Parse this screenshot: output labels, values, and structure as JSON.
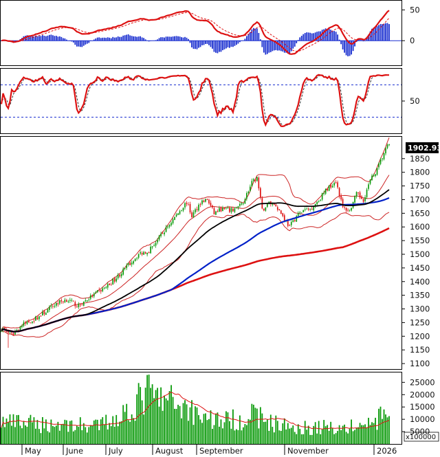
{
  "chart_data": {
    "type": "candlestick",
    "last_price": "1902.930",
    "months": [
      "May",
      "June",
      "July",
      "August",
      "September",
      "November",
      "2026"
    ],
    "price_axis": {
      "range": [
        1080,
        1930
      ],
      "ticks": [
        1100,
        1150,
        1200,
        1250,
        1300,
        1350,
        1400,
        1450,
        1500,
        1550,
        1600,
        1650,
        1700,
        1750,
        1800,
        1850
      ]
    },
    "volume_axis": {
      "range": [
        0,
        29000
      ],
      "ticks": [
        5000,
        10000,
        15000,
        20000,
        25000
      ],
      "unit": "x100000"
    },
    "macd_axis": {
      "range": [
        -40,
        65
      ],
      "ticks": [
        0,
        50
      ]
    },
    "stoch_axis": {
      "range": [
        -10,
        110
      ],
      "ticks": [
        50
      ],
      "levels": [
        20,
        80
      ]
    },
    "colors": {
      "up": "#0a9a0a",
      "down": "#dd1111",
      "ma_long": "#dd1111",
      "ma_mid": "#0020c8",
      "ma_short": "#000000",
      "bands": "#cc2222",
      "macd_pos": "#1a2fd0",
      "price_tag": "#000000"
    },
    "close_anchors": [
      [
        0,
        1230
      ],
      [
        6,
        1205
      ],
      [
        12,
        1240
      ],
      [
        20,
        1265
      ],
      [
        26,
        1290
      ],
      [
        32,
        1320
      ],
      [
        38,
        1335
      ],
      [
        45,
        1310
      ],
      [
        50,
        1335
      ],
      [
        56,
        1360
      ],
      [
        62,
        1385
      ],
      [
        68,
        1420
      ],
      [
        74,
        1460
      ],
      [
        80,
        1500
      ],
      [
        86,
        1515
      ],
      [
        92,
        1560
      ],
      [
        98,
        1610
      ],
      [
        104,
        1660
      ],
      [
        108,
        1690
      ],
      [
        111,
        1640
      ],
      [
        116,
        1690
      ],
      [
        120,
        1700
      ],
      [
        124,
        1650
      ],
      [
        128,
        1665
      ],
      [
        134,
        1660
      ],
      [
        140,
        1680
      ],
      [
        146,
        1760
      ],
      [
        149,
        1780
      ],
      [
        152,
        1660
      ],
      [
        156,
        1690
      ],
      [
        160,
        1680
      ],
      [
        164,
        1640
      ],
      [
        168,
        1600
      ],
      [
        172,
        1640
      ],
      [
        176,
        1660
      ],
      [
        180,
        1665
      ],
      [
        185,
        1700
      ],
      [
        190,
        1740
      ],
      [
        195,
        1770
      ],
      [
        199,
        1670
      ],
      [
        203,
        1660
      ],
      [
        207,
        1720
      ],
      [
        211,
        1700
      ],
      [
        215,
        1770
      ],
      [
        219,
        1810
      ],
      [
        223,
        1870
      ],
      [
        226,
        1903
      ]
    ],
    "volume_anchors": [
      [
        0,
        9000
      ],
      [
        20,
        8000
      ],
      [
        40,
        8000
      ],
      [
        55,
        7000
      ],
      [
        62,
        9000
      ],
      [
        70,
        12000
      ],
      [
        78,
        16000
      ],
      [
        85,
        21000
      ],
      [
        92,
        18000
      ],
      [
        100,
        17000
      ],
      [
        108,
        15000
      ],
      [
        116,
        12000
      ],
      [
        124,
        10000
      ],
      [
        132,
        9500
      ],
      [
        140,
        10000
      ],
      [
        148,
        12000
      ],
      [
        156,
        9000
      ],
      [
        164,
        7500
      ],
      [
        172,
        7000
      ],
      [
        180,
        6500
      ],
      [
        190,
        7000
      ],
      [
        200,
        6500
      ],
      [
        210,
        7500
      ],
      [
        218,
        9000
      ],
      [
        226,
        13000
      ]
    ]
  }
}
